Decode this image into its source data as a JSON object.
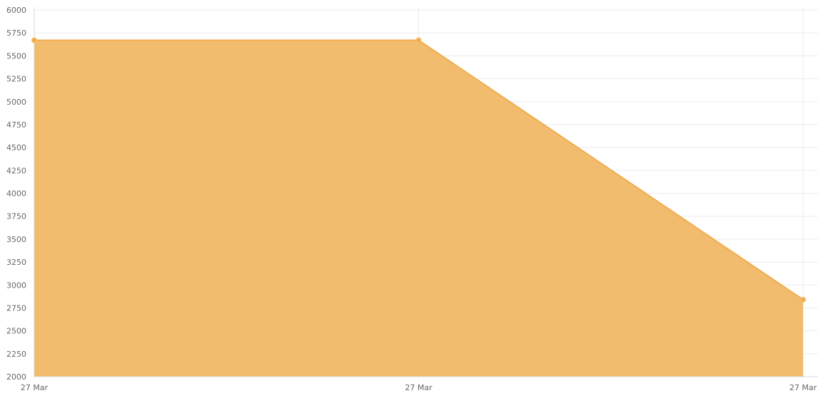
{
  "chart_data": {
    "type": "area",
    "title": "",
    "xlabel": "",
    "ylabel": "",
    "x": [
      "27 Mar",
      "27 Mar",
      "27 Mar"
    ],
    "series": [
      {
        "values": [
          5670,
          5670,
          2840
        ]
      }
    ],
    "ylim": [
      2000,
      6000
    ],
    "yticks": [
      2000,
      2250,
      2500,
      2750,
      3000,
      3250,
      3500,
      3750,
      4000,
      4250,
      4500,
      4750,
      5000,
      5250,
      5500,
      5750,
      6000
    ],
    "grid": true,
    "legend": "none",
    "colors": {
      "fill": "#f2bc6e",
      "line": "#f0ad4e",
      "point": "#f0ad4e"
    }
  }
}
